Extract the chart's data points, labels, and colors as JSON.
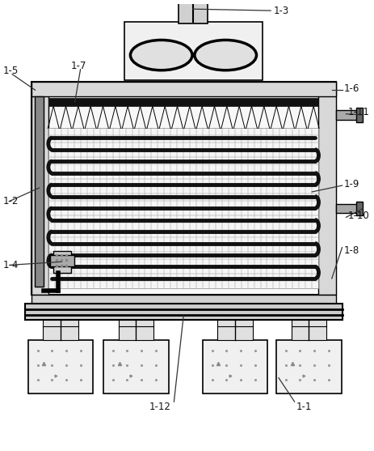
{
  "bg_color": "#ffffff",
  "line_color": "#000000",
  "figsize": [
    4.63,
    5.57
  ],
  "dpi": 100
}
